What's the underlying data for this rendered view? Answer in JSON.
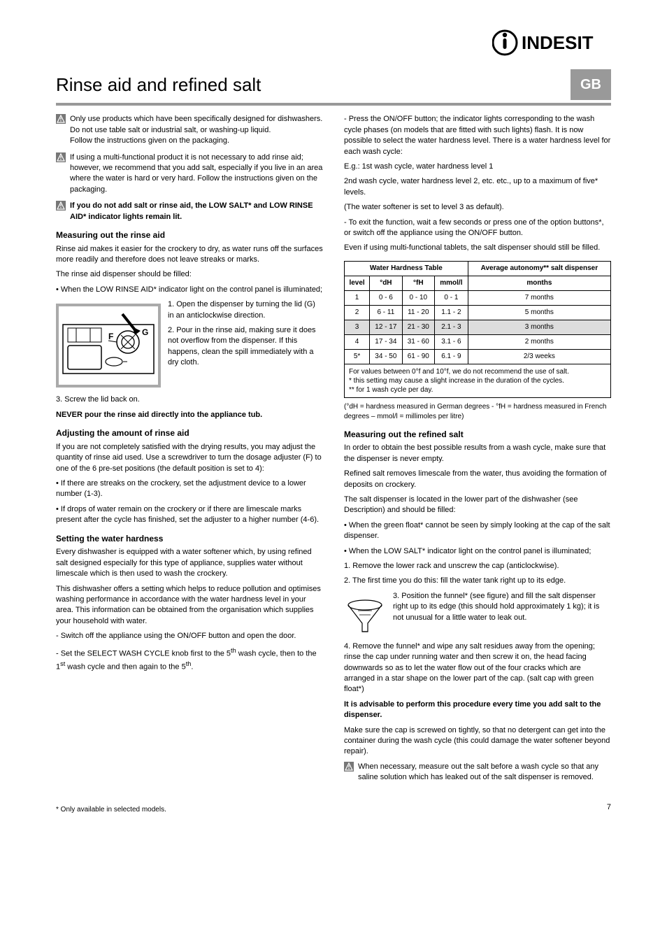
{
  "brand": "INDESIT",
  "lang_tab": "GB",
  "page_title": "Rinse aid and refined salt",
  "warn1": "Only use products which have been specifically designed for dishwashers.",
  "warn1b": "Do not use table salt or industrial salt, or washing-up liquid.",
  "warn1c": "Follow the instructions given on the packaging.",
  "warn2": "If using a multi-functional product it is not necessary to add rinse aid; however, we recommend that you add salt, especially if you live in an area where the water is hard or very hard. Follow the instructions given on the packaging.",
  "warn3": "If you do not add salt or rinse aid, the LOW SALT* and LOW RINSE AID* indicator lights remain lit.",
  "sec_rinse_h": "Measuring out the rinse aid",
  "sec_rinse_p1": "Rinse aid makes it easier for the crockery to dry, as water runs off the surfaces more readily and therefore does not leave streaks or marks.",
  "sec_rinse_p2": "The rinse aid dispenser should be filled:",
  "sec_rinse_b1": "When the LOW RINSE AID* indicator light on the control panel is illuminated;",
  "sec_rinse_side": "1. Open the dispenser by turning the lid (G) in an anticlockwise direction.",
  "sec_rinse_side2": "2. Pour in the rinse aid, making sure it does not overflow from the dispenser. If this happens, clean the spill immediately with a dry cloth.",
  "sec_rinse_side3": "3. Screw the lid back on.",
  "sec_rinse_never": "NEVER pour the rinse aid directly into the appliance tub.",
  "sec_rinse_adj_h": "Adjusting the amount of rinse aid",
  "sec_rinse_adj_p1": "If you are not completely satisfied with the drying results, you may adjust the quantity of rinse aid used. Use a screwdriver to turn the dosage adjuster (F) to one of the 6 pre-set positions (the default position is set to 4):",
  "sec_rinse_adj_b1": "If there are streaks on the crockery, set the adjustment device to a lower number (1-3).",
  "sec_rinse_adj_b2": "If drops of water remain on the crockery or if there are limescale marks present after the cycle has finished, set the adjuster to a higher number (4-6).",
  "sec_hard_h": "Setting the water hardness",
  "sec_hard_p1": "Every dishwasher is equipped with a water softener which, by using refined salt designed especially for this type of appliance, supplies water without limescale which is then used to wash the crockery.",
  "sec_hard_p2": "This dishwasher offers a setting which helps to reduce pollution and optimises washing performance in accordance with the water hardness level in your area. This information can be obtained from the organisation which supplies your household with water.",
  "sec_hard_p3": "- Switch off the appliance using the ON/OFF button and open the door.",
  "sec_hard_p4a": "- Set the SELECT WASH CYCLE knob first to the 5",
  "sec_hard_p4b": " wash cycle, then to the 1",
  "sec_hard_p4c": " wash cycle and then again to the 5",
  "sec_hard_p4d": ".",
  "sup_th": "th",
  "sup_st": "st",
  "sec_hard_p5": "- Press the ON/OFF button; the indicator lights corresponding to the wash cycle phases (on models that are fitted with such lights) flash. It is now possible to select the water hardness level. There is a water hardness level for each wash cycle:",
  "sec_hard_ex1": "E.g.: 1st wash cycle, water hardness level 1",
  "sec_hard_ex2": "2nd wash cycle, water hardness level 2, etc. etc., up to a maximum of five* levels.",
  "sec_hard_p6": "(The water softener is set to level 3 as default).",
  "sec_hard_p7": "- To exit the function, wait a few seconds or press one of the option buttons*, or switch off the appliance using the ON/OFF button.",
  "sec_hard_p8": "Even if using multi-functional tablets, the salt dispenser should still be filled.",
  "table": {
    "header_main": "Water Hardness Table",
    "header_auto": "Average autonomy** salt dispenser",
    "cols": [
      "level",
      "°dH",
      "°fH",
      "mmol/l",
      "months"
    ],
    "rows": [
      [
        "1",
        "0 - 6",
        "0 - 10",
        "0 - 1",
        "7 months"
      ],
      [
        "2",
        "6 - 11",
        "11 - 20",
        "1.1 - 2",
        "5 months"
      ],
      [
        "3",
        "12 - 17",
        "21 - 30",
        "2.1 - 3",
        "3 months"
      ],
      [
        "4",
        "17 - 34",
        "31 - 60",
        "3.1 - 6",
        "2 months"
      ],
      [
        "5*",
        "34 - 50",
        "61 - 90",
        "6.1 - 9",
        "2/3 weeks"
      ]
    ],
    "shaded_row_index": 2,
    "note": "For values between 0°f and 10°f, we do not recommend the use of salt.\n* this setting may cause a slight increase in the duration of the cycles.\n** for 1 wash cycle per day.",
    "note_below": "(°dH = hardness measured in German degrees - °fH = hardness measured in French degrees – mmol/l = millimoles per litre)"
  },
  "sec_salt_h": "Measuring out the refined salt",
  "sec_salt_p1": "In order to obtain the best possible results from a wash cycle, make sure that the dispenser is never empty.",
  "sec_salt_p2": "Refined salt removes limescale from the water, thus avoiding the formation of deposits on crockery.",
  "sec_salt_p3": "The salt dispenser is located in the lower part of the dishwasher (see Description) and should be filled:",
  "sec_salt_b1": "When the green float* cannot be seen by simply looking at the cap of the salt dispenser.",
  "sec_salt_b2": "When the LOW SALT* indicator light on the control panel is illuminated;",
  "sec_salt_s1": "1. Remove the lower rack and unscrew the cap (anticlockwise).",
  "sec_salt_s2": "2. The first time you do this: fill the water tank right up to its edge.",
  "sec_salt_s3": "3. Position the funnel* (see figure) and fill the salt dispenser right up to its edge (this should hold approximately 1 kg); it is not unusual for a little water to leak out.",
  "sec_salt_s4": "4. Remove the funnel* and wipe any salt residues away from the opening; rinse the cap under running water and then screw it on, the head facing downwards so as to let the water flow out of the four cracks which are arranged in a star shape on the lower part of the cap. (salt cap with green float*)",
  "sec_salt_rec": "It is advisable to perform this procedure every time you add salt to the dispenser.",
  "sec_salt_p4": "Make sure the cap is screwed on tightly, so that no detergent can get into the container during the wash cycle (this could damage the water softener beyond repair).",
  "sec_salt_warn": "When necessary, measure out the salt before a wash cycle so that any saline solution which has leaked out of the salt dispenser is removed.",
  "footnote": "* Only available in selected models.",
  "page_number": "7",
  "colors": {
    "rule": "#999999",
    "tab_bg": "#999999",
    "shaded_row": "#dddddd",
    "illus_border": "#aaaaaa",
    "text": "#000000",
    "background": "#ffffff"
  }
}
